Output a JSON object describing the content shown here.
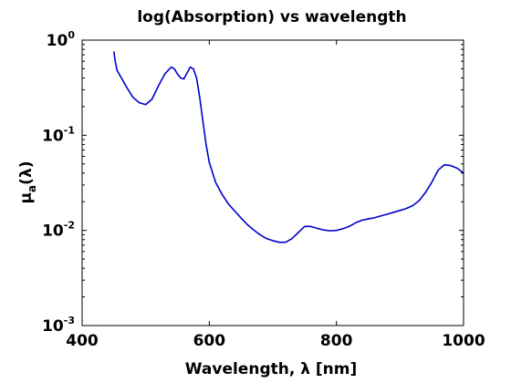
{
  "chart_data": {
    "type": "line",
    "title": "log(Absorption) vs wavelength",
    "xlabel": "Wavelength, λ [nm]",
    "ylabel": {
      "main": "μ",
      "sub": "a",
      "suffix": "(λ)"
    },
    "xlim": [
      400,
      1000
    ],
    "ylim": [
      0.001,
      1
    ],
    "yscale": "log",
    "grid": false,
    "x_ticks": [
      {
        "value": 400,
        "label": "400"
      },
      {
        "value": 600,
        "label": "600"
      },
      {
        "value": 800,
        "label": "800"
      },
      {
        "value": 1000,
        "label": "1000"
      }
    ],
    "y_ticks": [
      {
        "value": 0.001,
        "base": "10",
        "exp": "-3"
      },
      {
        "value": 0.01,
        "base": "10",
        "exp": "-2"
      },
      {
        "value": 0.1,
        "base": "10",
        "exp": "-1"
      },
      {
        "value": 1,
        "base": "10",
        "exp": "0"
      }
    ],
    "series": [
      {
        "color": "#0000cc",
        "x": [
          450,
          452,
          455,
          460,
          470,
          480,
          490,
          500,
          510,
          520,
          530,
          540,
          545,
          550,
          555,
          560,
          565,
          570,
          575,
          580,
          585,
          590,
          595,
          600,
          610,
          620,
          630,
          640,
          650,
          660,
          670,
          680,
          690,
          700,
          710,
          720,
          730,
          740,
          750,
          760,
          770,
          780,
          790,
          800,
          810,
          820,
          830,
          840,
          850,
          860,
          870,
          880,
          890,
          900,
          910,
          920,
          930,
          940,
          950,
          960,
          970,
          980,
          990,
          1000
        ],
        "values": [
          0.75,
          0.6,
          0.48,
          0.42,
          0.32,
          0.25,
          0.22,
          0.21,
          0.24,
          0.33,
          0.44,
          0.52,
          0.5,
          0.44,
          0.4,
          0.39,
          0.45,
          0.52,
          0.5,
          0.4,
          0.25,
          0.14,
          0.08,
          0.052,
          0.032,
          0.024,
          0.019,
          0.016,
          0.0135,
          0.0115,
          0.0101,
          0.009,
          0.0082,
          0.0078,
          0.0075,
          0.0075,
          0.0082,
          0.0095,
          0.011,
          0.011,
          0.0105,
          0.0101,
          0.0099,
          0.01,
          0.0104,
          0.011,
          0.012,
          0.0128,
          0.0132,
          0.0136,
          0.0142,
          0.0148,
          0.0155,
          0.0162,
          0.017,
          0.0182,
          0.0205,
          0.025,
          0.032,
          0.043,
          0.049,
          0.048,
          0.045,
          0.04
        ]
      }
    ]
  }
}
